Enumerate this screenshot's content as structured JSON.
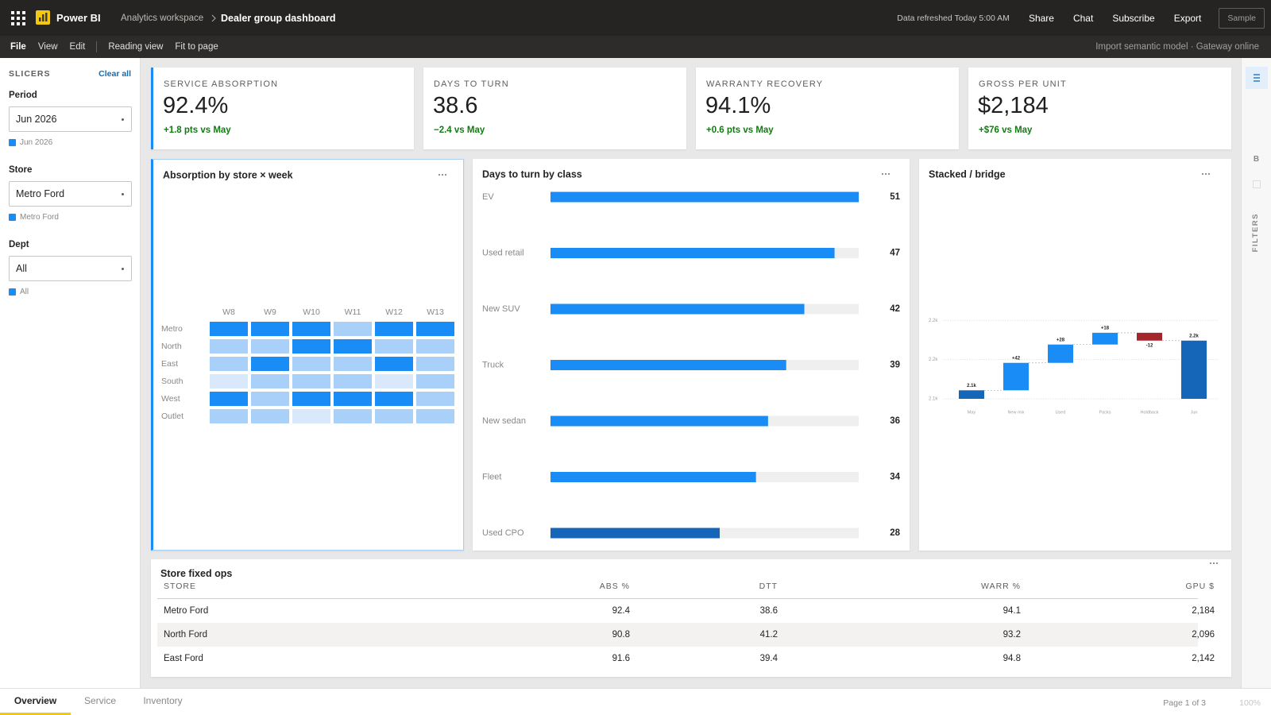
{
  "header": {
    "app_name": "Power BI",
    "workspace": "Analytics workspace",
    "report": "Dealer group dashboard",
    "refreshed": "Data refreshed Today 5:00 AM",
    "actions": [
      "Share",
      "Chat",
      "Subscribe",
      "Export"
    ],
    "sample": "Sample"
  },
  "menu": {
    "items": [
      "File",
      "View",
      "Edit"
    ],
    "view_items": [
      "Reading view",
      "Fit to page"
    ],
    "status": "Import semantic model · Gateway online"
  },
  "slicers": {
    "title": "SLICERS",
    "clear": "Clear all",
    "groups": [
      {
        "label": "Period",
        "value": "Jun 2026",
        "chip": "Jun 2026"
      },
      {
        "label": "Store",
        "value": "Metro Ford",
        "chip": "Metro Ford"
      },
      {
        "label": "Dept",
        "value": "All",
        "chip": "All"
      }
    ]
  },
  "kpis": [
    {
      "label": "SERVICE ABSORPTION",
      "value": "92.4%",
      "delta": "+1.8 pts vs May"
    },
    {
      "label": "DAYS TO TURN",
      "value": "38.6",
      "delta": "−2.4 vs May"
    },
    {
      "label": "WARRANTY RECOVERY",
      "value": "94.1%",
      "delta": "+0.6 pts vs May"
    },
    {
      "label": "GROSS PER UNIT",
      "value": "$2,184",
      "delta": "+$76 vs May"
    }
  ],
  "heatmap": {
    "title": "Absorption by store × week",
    "columns": [
      "W8",
      "W9",
      "W10",
      "W11",
      "W12",
      "W13"
    ],
    "rows": [
      "Metro",
      "North",
      "East",
      "South",
      "West",
      "Outlet"
    ],
    "levels": [
      [
        3,
        3,
        3,
        2,
        3,
        3
      ],
      [
        2,
        2,
        3,
        3,
        2,
        2
      ],
      [
        2,
        3,
        2,
        2,
        3,
        2
      ],
      [
        1,
        2,
        2,
        2,
        1,
        2
      ],
      [
        3,
        2,
        3,
        3,
        3,
        2
      ],
      [
        2,
        2,
        1,
        2,
        2,
        2
      ]
    ],
    "level_colors": [
      "#d9e9fb",
      "#a9d0f8",
      "#1a8cf5"
    ]
  },
  "bars": {
    "title": "Days to turn by class",
    "categories": [
      "EV",
      "Used retail",
      "New SUV",
      "Truck",
      "New sedan",
      "Fleet",
      "Used CPO"
    ],
    "values": [
      51,
      47,
      42,
      39,
      36,
      34,
      28
    ],
    "xlim": [
      0,
      51
    ],
    "colors": [
      "#1a8cf5",
      "#1a8cf5",
      "#1a8cf5",
      "#1a8cf5",
      "#1a8cf5",
      "#1a8cf5",
      "#1565b8"
    ],
    "track_color": "#efefef"
  },
  "waterfall": {
    "title": "Stacked / bridge",
    "categories": [
      "May",
      "New mix",
      "Used",
      "Packs",
      "Holdback",
      "Jun"
    ],
    "values": [
      2108,
      42,
      28,
      18,
      -12,
      2184
    ],
    "value_labels": [
      "2.1k",
      "+42",
      "+28",
      "+18",
      "-12",
      "2.2k"
    ],
    "totals": [
      true,
      false,
      false,
      false,
      false,
      true
    ],
    "ylim": [
      2095,
      2225
    ],
    "yticks": [
      {
        "value": 2095,
        "label": "2.1k"
      },
      {
        "value": 2155,
        "label": "2.2k"
      },
      {
        "value": 2215,
        "label": "2.2k"
      }
    ],
    "colors": {
      "total": "#1565b8",
      "increase": "#1a8cf5",
      "decrease": "#a4262c"
    }
  },
  "table": {
    "title": "Store fixed ops",
    "columns": [
      "STORE",
      "ABS %",
      "DTT",
      "WARR %",
      "GPU $"
    ],
    "rows": [
      [
        "Metro Ford",
        "92.4",
        "38.6",
        "94.1",
        "2,184"
      ],
      [
        "North Ford",
        "90.8",
        "41.2",
        "93.2",
        "2,096"
      ],
      [
        "East Ford",
        "91.6",
        "39.4",
        "94.8",
        "2,142"
      ]
    ]
  },
  "tabs": {
    "items": [
      "Overview",
      "Service",
      "Inventory"
    ],
    "page": "Page 1 of 3",
    "zoom": "100%"
  },
  "filters_pane": {
    "label": "FILTERS",
    "letter": "B"
  }
}
